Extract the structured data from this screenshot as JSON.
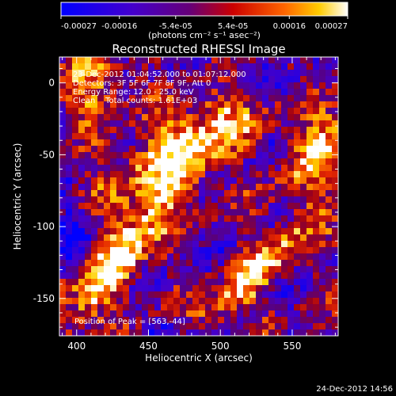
{
  "chart_data": {
    "type": "heatmap",
    "title": "Reconstructed RHESSI Image",
    "xlabel": "Heliocentric X (arcsec)",
    "ylabel": "Heliocentric Y (arcsec)",
    "xlim": [
      388,
      582
    ],
    "ylim": [
      -176,
      18
    ],
    "x_ticks": [
      400,
      450,
      500,
      550
    ],
    "y_ticks": [
      0,
      -50,
      -100,
      -150
    ],
    "colorbar": {
      "ticks": [
        "-0.00027",
        "-0.00016",
        "-5.4e-05",
        "5.4e-05",
        "0.00016",
        "0.00027"
      ],
      "values": [
        -0.00027,
        -0.00016,
        -5.4e-05,
        5.4e-05,
        0.00016,
        0.00027
      ],
      "unit_label": "(photons cm⁻² s⁻¹ asec⁻²)"
    },
    "annotations": [
      "23-Dec-2012 01:04:52.000 to 01:07:12.000",
      "Detectors: 3F 5F 6F 7F 8F 9F, Att 0",
      "Energy Range: 12.0 - 25.0 keV",
      "Clean    Total counts: 1.61E+03"
    ],
    "peak_text": "Position of Peak = [563,-44]",
    "peak": [
      563,
      -44
    ],
    "grid": false,
    "colors": {
      "low": "#0000ff",
      "mid": "#550077",
      "high": "#ff3300",
      "max": "#ffffff"
    }
  },
  "footer": {
    "timestamp": "24-Dec-2012 14:56"
  }
}
